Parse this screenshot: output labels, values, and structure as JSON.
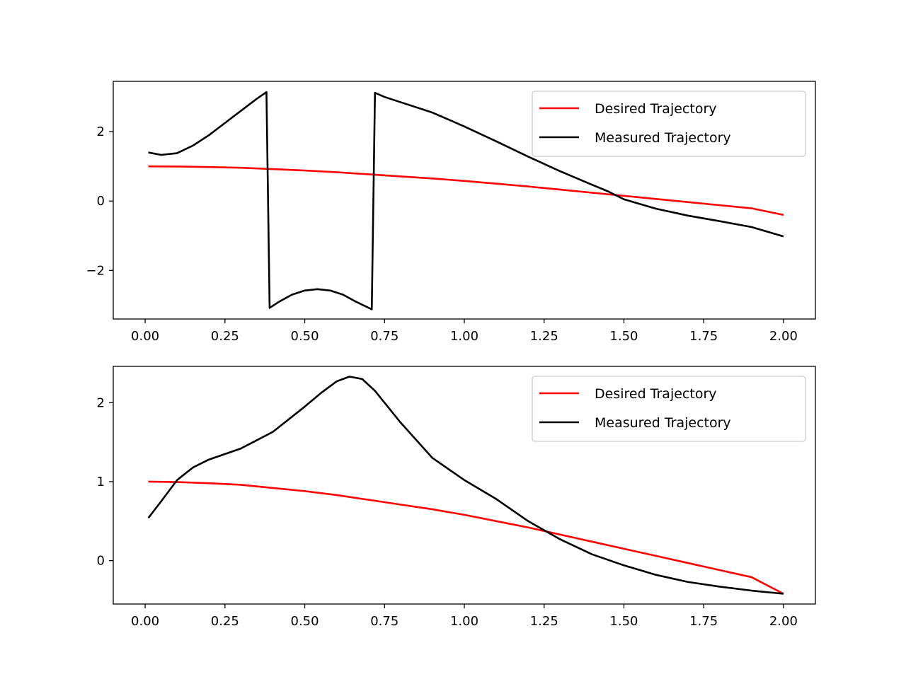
{
  "chart_data": [
    {
      "type": "line",
      "xlim": [
        -0.1,
        2.1
      ],
      "ylim": [
        -3.4,
        3.45
      ],
      "x_ticks": [
        "0.00",
        "0.25",
        "0.50",
        "0.75",
        "1.00",
        "1.25",
        "1.50",
        "1.75",
        "2.00"
      ],
      "y_ticks": [
        "−2",
        "0",
        "2"
      ],
      "grid": false,
      "legend_placement": "top-right",
      "series": [
        {
          "name": "Desired Trajectory",
          "color": "#ff0000",
          "points": [
            [
              0.01,
              1.0
            ],
            [
              0.1,
              0.995
            ],
            [
              0.2,
              0.98
            ],
            [
              0.3,
              0.96
            ],
            [
              0.4,
              0.92
            ],
            [
              0.5,
              0.88
            ],
            [
              0.6,
              0.83
            ],
            [
              0.7,
              0.77
            ],
            [
              0.8,
              0.71
            ],
            [
              0.9,
              0.65
            ],
            [
              1.0,
              0.58
            ],
            [
              1.1,
              0.5
            ],
            [
              1.2,
              0.42
            ],
            [
              1.3,
              0.33
            ],
            [
              1.4,
              0.24
            ],
            [
              1.5,
              0.15
            ],
            [
              1.6,
              0.06
            ],
            [
              1.7,
              -0.03
            ],
            [
              1.8,
              -0.12
            ],
            [
              1.9,
              -0.21
            ],
            [
              2.0,
              -0.4
            ]
          ]
        },
        {
          "name": "Measured Trajectory",
          "color": "#000000",
          "points": [
            [
              0.01,
              1.4
            ],
            [
              0.05,
              1.33
            ],
            [
              0.1,
              1.38
            ],
            [
              0.15,
              1.6
            ],
            [
              0.2,
              1.9
            ],
            [
              0.25,
              2.25
            ],
            [
              0.3,
              2.6
            ],
            [
              0.35,
              2.95
            ],
            [
              0.38,
              3.14
            ],
            [
              0.39,
              -3.08
            ],
            [
              0.42,
              -2.9
            ],
            [
              0.46,
              -2.7
            ],
            [
              0.5,
              -2.58
            ],
            [
              0.54,
              -2.54
            ],
            [
              0.58,
              -2.58
            ],
            [
              0.62,
              -2.7
            ],
            [
              0.66,
              -2.9
            ],
            [
              0.71,
              -3.12
            ],
            [
              0.72,
              3.12
            ],
            [
              0.75,
              3.0
            ],
            [
              0.8,
              2.85
            ],
            [
              0.9,
              2.55
            ],
            [
              1.0,
              2.15
            ],
            [
              1.1,
              1.72
            ],
            [
              1.2,
              1.28
            ],
            [
              1.3,
              0.86
            ],
            [
              1.4,
              0.47
            ],
            [
              1.45,
              0.28
            ],
            [
              1.5,
              0.05
            ],
            [
              1.6,
              -0.22
            ],
            [
              1.7,
              -0.42
            ],
            [
              1.8,
              -0.58
            ],
            [
              1.9,
              -0.75
            ],
            [
              2.0,
              -1.02
            ]
          ]
        }
      ]
    },
    {
      "type": "line",
      "xlim": [
        -0.1,
        2.1
      ],
      "ylim": [
        -0.55,
        2.46
      ],
      "x_ticks": [
        "0.00",
        "0.25",
        "0.50",
        "0.75",
        "1.00",
        "1.25",
        "1.50",
        "1.75",
        "2.00"
      ],
      "y_ticks": [
        "0",
        "1",
        "2"
      ],
      "grid": false,
      "legend_placement": "top-right",
      "series": [
        {
          "name": "Desired Trajectory",
          "color": "#ff0000",
          "points": [
            [
              0.01,
              1.0
            ],
            [
              0.1,
              0.995
            ],
            [
              0.2,
              0.98
            ],
            [
              0.3,
              0.96
            ],
            [
              0.4,
              0.92
            ],
            [
              0.5,
              0.88
            ],
            [
              0.6,
              0.83
            ],
            [
              0.7,
              0.77
            ],
            [
              0.8,
              0.71
            ],
            [
              0.9,
              0.65
            ],
            [
              1.0,
              0.58
            ],
            [
              1.1,
              0.5
            ],
            [
              1.2,
              0.42
            ],
            [
              1.3,
              0.33
            ],
            [
              1.4,
              0.24
            ],
            [
              1.5,
              0.15
            ],
            [
              1.6,
              0.06
            ],
            [
              1.7,
              -0.03
            ],
            [
              1.8,
              -0.12
            ],
            [
              1.9,
              -0.21
            ],
            [
              2.0,
              -0.42
            ]
          ]
        },
        {
          "name": "Measured Trajectory",
          "color": "#000000",
          "points": [
            [
              0.01,
              0.54
            ],
            [
              0.05,
              0.75
            ],
            [
              0.1,
              1.02
            ],
            [
              0.15,
              1.18
            ],
            [
              0.2,
              1.28
            ],
            [
              0.3,
              1.42
            ],
            [
              0.4,
              1.63
            ],
            [
              0.5,
              1.95
            ],
            [
              0.55,
              2.12
            ],
            [
              0.6,
              2.27
            ],
            [
              0.64,
              2.33
            ],
            [
              0.68,
              2.3
            ],
            [
              0.72,
              2.15
            ],
            [
              0.8,
              1.75
            ],
            [
              0.9,
              1.3
            ],
            [
              1.0,
              1.02
            ],
            [
              1.1,
              0.78
            ],
            [
              1.2,
              0.5
            ],
            [
              1.3,
              0.27
            ],
            [
              1.4,
              0.08
            ],
            [
              1.5,
              -0.06
            ],
            [
              1.6,
              -0.18
            ],
            [
              1.7,
              -0.27
            ],
            [
              1.8,
              -0.33
            ],
            [
              1.9,
              -0.38
            ],
            [
              2.0,
              -0.42
            ]
          ]
        }
      ]
    }
  ]
}
